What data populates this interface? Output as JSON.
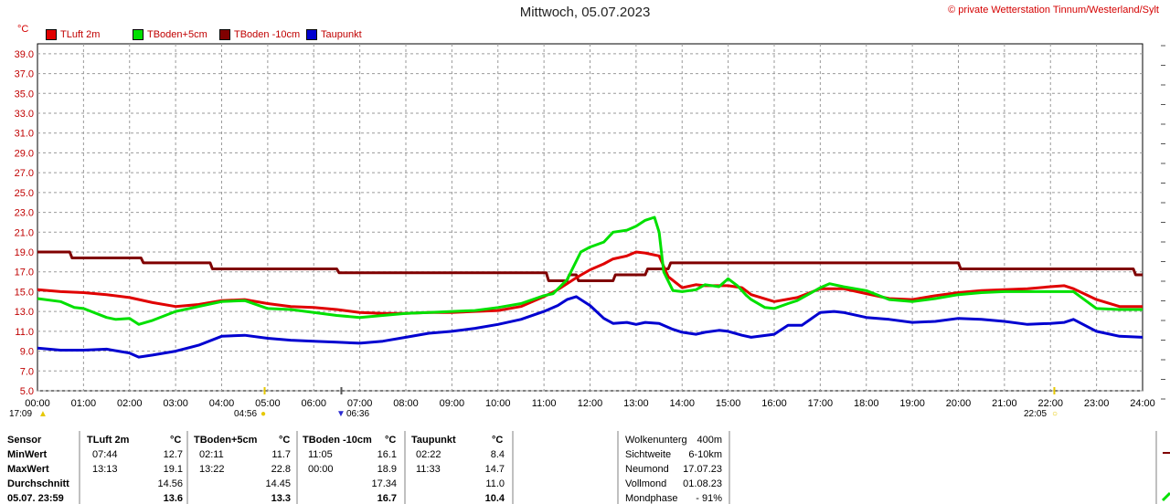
{
  "header": {
    "title": "Mittwoch, 05.07.2023",
    "copyright": "© private Wetterstation Tinnum/Westerland/Sylt",
    "unit": "°C"
  },
  "colors": {
    "tluft": "#e00000",
    "tboden5": "#00e000",
    "tboden10": "#800000",
    "taupunkt": "#0000d0",
    "grid": "#9a9a9a",
    "axis_text": "#c00000"
  },
  "chart_data": {
    "type": "line",
    "xlabel": "",
    "ylabel": "°C",
    "xlim": [
      0,
      24
    ],
    "ylim": [
      5,
      40
    ],
    "y_ticks": [
      "5.0",
      "7.0",
      "9.0",
      "11.0",
      "13.0",
      "15.0",
      "17.0",
      "19.0",
      "21.0",
      "23.0",
      "25.0",
      "27.0",
      "29.0",
      "31.0",
      "33.0",
      "35.0",
      "37.0",
      "39.0"
    ],
    "x_ticks": [
      "00:00",
      "01:00",
      "02:00",
      "03:00",
      "04:00",
      "05:00",
      "06:00",
      "07:00",
      "08:00",
      "09:00",
      "10:00",
      "11:00",
      "12:00",
      "13:00",
      "14:00",
      "15:00",
      "16:00",
      "17:00",
      "18:00",
      "19:00",
      "20:00",
      "21:00",
      "22:00",
      "23:00",
      "24:00"
    ],
    "grid": true,
    "legend_position": "top-left",
    "series": [
      {
        "name": "TLuft 2m",
        "x": [
          0,
          0.5,
          1,
          1.5,
          2,
          2.5,
          3,
          3.5,
          4,
          4.5,
          5,
          5.5,
          6,
          6.5,
          7,
          7.5,
          8,
          8.5,
          9,
          9.5,
          10,
          10.5,
          11,
          11.3,
          11.5,
          11.7,
          12,
          12.3,
          12.5,
          12.8,
          13,
          13.2,
          13.5,
          13.7,
          14,
          14.3,
          14.5,
          14.8,
          15,
          15.3,
          15.5,
          16,
          16.5,
          17,
          17.5,
          18,
          18.5,
          19,
          19.5,
          20,
          20.5,
          21,
          21.5,
          22,
          22.3,
          22.5,
          23,
          23.5,
          24
        ],
        "values": [
          15.2,
          15.0,
          14.9,
          14.7,
          14.4,
          13.9,
          13.5,
          13.7,
          14.1,
          14.2,
          13.8,
          13.5,
          13.4,
          13.2,
          12.9,
          12.8,
          12.8,
          12.9,
          12.9,
          13.0,
          13.1,
          13.5,
          14.5,
          15.2,
          15.8,
          16.4,
          17.2,
          17.8,
          18.3,
          18.6,
          19.0,
          18.9,
          18.6,
          16.5,
          15.4,
          15.7,
          15.6,
          15.6,
          15.6,
          15.4,
          14.7,
          14.0,
          14.4,
          15.3,
          15.3,
          14.8,
          14.3,
          14.2,
          14.6,
          14.9,
          15.1,
          15.2,
          15.3,
          15.5,
          15.6,
          15.3,
          14.2,
          13.5,
          13.5
        ]
      },
      {
        "name": "TBoden+5cm",
        "x": [
          0,
          0.5,
          0.8,
          1,
          1.5,
          1.7,
          2,
          2.2,
          2.5,
          3,
          3.5,
          4,
          4.5,
          5,
          5.5,
          6,
          6.5,
          7,
          7.5,
          8,
          8.5,
          9,
          9.5,
          10,
          10.5,
          11,
          11.2,
          11.5,
          11.8,
          12,
          12.3,
          12.5,
          12.8,
          13,
          13.2,
          13.4,
          13.5,
          13.6,
          13.8,
          14,
          14.3,
          14.5,
          14.8,
          15,
          15.2,
          15.4,
          15.5,
          15.8,
          16,
          16.3,
          16.5,
          17,
          17.2,
          17.5,
          18,
          18.5,
          19,
          19.5,
          20,
          20.5,
          21,
          21.5,
          22,
          22.5,
          23,
          23.5,
          24
        ],
        "values": [
          14.3,
          14.0,
          13.4,
          13.3,
          12.4,
          12.2,
          12.3,
          11.7,
          12.1,
          13.0,
          13.5,
          14.0,
          14.1,
          13.3,
          13.2,
          12.9,
          12.6,
          12.4,
          12.6,
          12.8,
          12.9,
          13.0,
          13.1,
          13.4,
          13.8,
          14.6,
          14.8,
          16.2,
          19.0,
          19.5,
          20.0,
          21.0,
          21.2,
          21.6,
          22.2,
          22.5,
          21.0,
          17.0,
          15.1,
          15.0,
          15.2,
          15.7,
          15.5,
          16.3,
          15.6,
          14.6,
          14.2,
          13.4,
          13.3,
          13.8,
          14.1,
          15.4,
          15.8,
          15.5,
          15.1,
          14.2,
          14.0,
          14.3,
          14.7,
          14.9,
          15.0,
          15.0,
          15.0,
          15.0,
          13.3,
          13.2,
          13.2
        ]
      },
      {
        "name": "TBoden -10cm",
        "x": [
          0,
          0.7,
          0.75,
          2.25,
          2.3,
          3.75,
          3.8,
          6.5,
          6.55,
          11.05,
          11.1,
          11.5,
          11.55,
          11.7,
          11.75,
          12.5,
          12.55,
          13.2,
          13.25,
          13.7,
          13.75,
          15.0,
          15.05,
          20.0,
          20.05,
          23.8,
          23.85,
          24
        ],
        "values": [
          19.0,
          19.0,
          18.4,
          18.4,
          17.9,
          17.9,
          17.3,
          17.3,
          16.9,
          16.9,
          16.1,
          16.1,
          16.7,
          16.7,
          16.1,
          16.1,
          16.7,
          16.7,
          17.3,
          17.3,
          17.9,
          17.9,
          17.9,
          17.9,
          17.3,
          17.3,
          16.7,
          16.7
        ]
      },
      {
        "name": "Taupunkt",
        "x": [
          0,
          0.5,
          1,
          1.5,
          2,
          2.2,
          2.5,
          3,
          3.5,
          4,
          4.5,
          5,
          5.5,
          6,
          6.5,
          7,
          7.5,
          8,
          8.5,
          9,
          9.5,
          10,
          10.5,
          11,
          11.3,
          11.5,
          11.7,
          12,
          12.3,
          12.5,
          12.8,
          13,
          13.2,
          13.5,
          13.8,
          14,
          14.3,
          14.5,
          14.8,
          15,
          15.3,
          15.5,
          16,
          16.3,
          16.6,
          17,
          17.3,
          17.5,
          18,
          18.5,
          19,
          19.5,
          20,
          20.5,
          21,
          21.5,
          22,
          22.3,
          22.5,
          23,
          23.5,
          24
        ],
        "values": [
          9.3,
          9.1,
          9.1,
          9.2,
          8.8,
          8.4,
          8.6,
          9.0,
          9.6,
          10.5,
          10.6,
          10.3,
          10.1,
          10.0,
          9.9,
          9.8,
          10.0,
          10.4,
          10.8,
          11.0,
          11.3,
          11.7,
          12.2,
          13.0,
          13.6,
          14.2,
          14.5,
          13.6,
          12.3,
          11.8,
          11.9,
          11.7,
          11.9,
          11.8,
          11.2,
          10.9,
          10.7,
          10.9,
          11.1,
          11.0,
          10.6,
          10.4,
          10.7,
          11.6,
          11.6,
          12.9,
          13.0,
          12.9,
          12.4,
          12.2,
          11.9,
          12.0,
          12.3,
          12.2,
          12.0,
          11.7,
          11.8,
          11.9,
          12.2,
          11.0,
          10.5,
          10.4
        ]
      }
    ]
  },
  "sun_markers": {
    "sunrise_prev": "17:09",
    "sunrise": "04:56",
    "moon": "06:36",
    "sunset": "22:05"
  },
  "stats": {
    "headers": {
      "sensor": "Sensor",
      "tluft": "TLuft 2m",
      "tboden5": "TBoden+5cm",
      "tboden10": "TBoden -10cm",
      "taupunkt": "Taupunkt",
      "unit": "°C"
    },
    "rows": [
      {
        "label": "MinWert",
        "tl_t": "07:44",
        "tl_v": "12.7",
        "t5_t": "02:11",
        "t5_v": "11.7",
        "t10_t": "11:05",
        "t10_v": "16.1",
        "tp_t": "02:22",
        "tp_v": "8.4"
      },
      {
        "label": "MaxWert",
        "tl_t": "13:13",
        "tl_v": "19.1",
        "t5_t": "13:22",
        "t5_v": "22.8",
        "t10_t": "00:00",
        "t10_v": "18.9",
        "tp_t": "11:33",
        "tp_v": "14.7"
      },
      {
        "label": "Durchschnitt",
        "tl_t": "",
        "tl_v": "14.56",
        "t5_t": "",
        "t5_v": "14.45",
        "t10_t": "",
        "t10_v": "17.34",
        "tp_t": "",
        "tp_v": "11.0"
      },
      {
        "label": "05.07. 23:59",
        "tl_t": "",
        "tl_v": "13.6",
        "t5_t": "",
        "t5_v": "13.3",
        "t10_t": "",
        "t10_v": "16.7",
        "tp_t": "",
        "tp_v": "10.4"
      }
    ],
    "weather": [
      {
        "label": "Wolkenunterg",
        "value": "400m"
      },
      {
        "label": "Sichtweite",
        "value": "6-10km"
      },
      {
        "label": "Neumond",
        "value": "17.07.23"
      },
      {
        "label": "Vollmond",
        "value": "01.08.23"
      },
      {
        "label": "Mondphase",
        "value": "- 91%"
      }
    ]
  }
}
